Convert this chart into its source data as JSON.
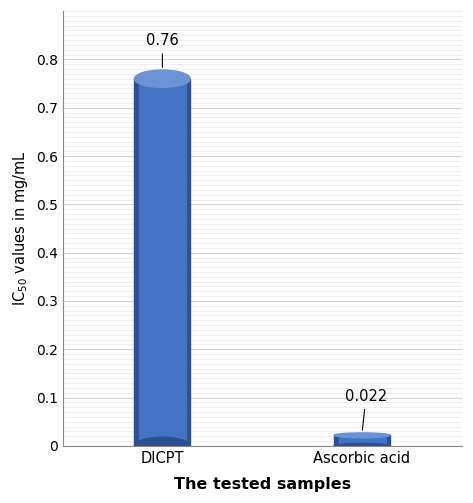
{
  "categories": [
    "DICPT",
    "Ascorbic acid"
  ],
  "values": [
    0.76,
    0.022
  ],
  "bar_color": "#4472C4",
  "bar_color_dark": "#2E5090",
  "bar_color_top": "#6A93D4",
  "bar_color_side_light": "#5B86D4",
  "xlabel": "The tested samples",
  "ylabel": "IC$_{50}$ values in mg/mL",
  "ylim": [
    0,
    0.9
  ],
  "yticks": [
    0,
    0.1,
    0.2,
    0.3,
    0.4,
    0.5,
    0.6,
    0.7,
    0.8
  ],
  "bar_width": 0.28,
  "annotations": [
    "0.76",
    "0.022"
  ],
  "background_color": "#ffffff",
  "grid_color": "#d0d0d0",
  "minor_grid_color": "#e8e8e8",
  "x_positions": [
    0.3,
    0.7
  ]
}
